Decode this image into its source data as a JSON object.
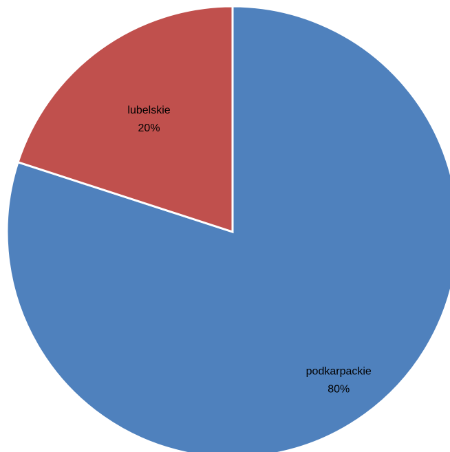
{
  "chart_data": {
    "type": "pie",
    "title": "",
    "start_angle_deg": 0,
    "direction": "clockwise",
    "slices": [
      {
        "label": "podkarpackie",
        "value": 80,
        "value_label": "80%",
        "color": "#4F81BD"
      },
      {
        "label": "lubelskie",
        "value": 20,
        "value_label": "20%",
        "color": "#C0504D"
      }
    ],
    "legend": "none",
    "separator_color": "#FFFFFF"
  }
}
